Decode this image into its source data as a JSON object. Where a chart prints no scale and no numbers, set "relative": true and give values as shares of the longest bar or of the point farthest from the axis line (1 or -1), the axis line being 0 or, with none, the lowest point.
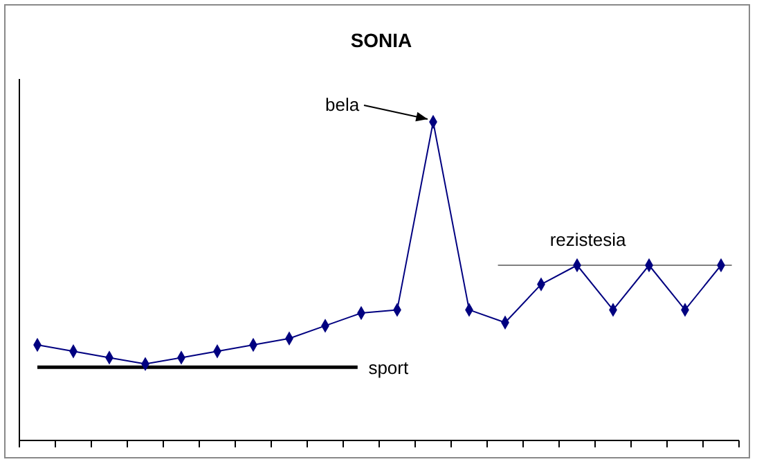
{
  "chart_data": {
    "type": "line",
    "title": "SONIA",
    "relative": true,
    "marker": "diamond",
    "categories": [
      null,
      null,
      null,
      null,
      null,
      null,
      null,
      null,
      null,
      null,
      null,
      null,
      null,
      null,
      null,
      null,
      null,
      null,
      null,
      null
    ],
    "series": [
      {
        "color": "#000080",
        "values": [
          0.3,
          0.28,
          0.26,
          0.24,
          0.26,
          0.28,
          0.3,
          0.32,
          0.36,
          0.4,
          0.41,
          1,
          0.41,
          0.37,
          0.49,
          0.55,
          0.41,
          0.55,
          0.41,
          0.55
        ]
      }
    ],
    "ref_lines": [
      {
        "axis": "y",
        "value": 0.23,
        "label": "sport",
        "color": "#000000"
      },
      {
        "axis": "y",
        "value": 0.55,
        "label": "rezistesia",
        "color": "#808080"
      }
    ],
    "annotations": [
      "bela"
    ]
  }
}
